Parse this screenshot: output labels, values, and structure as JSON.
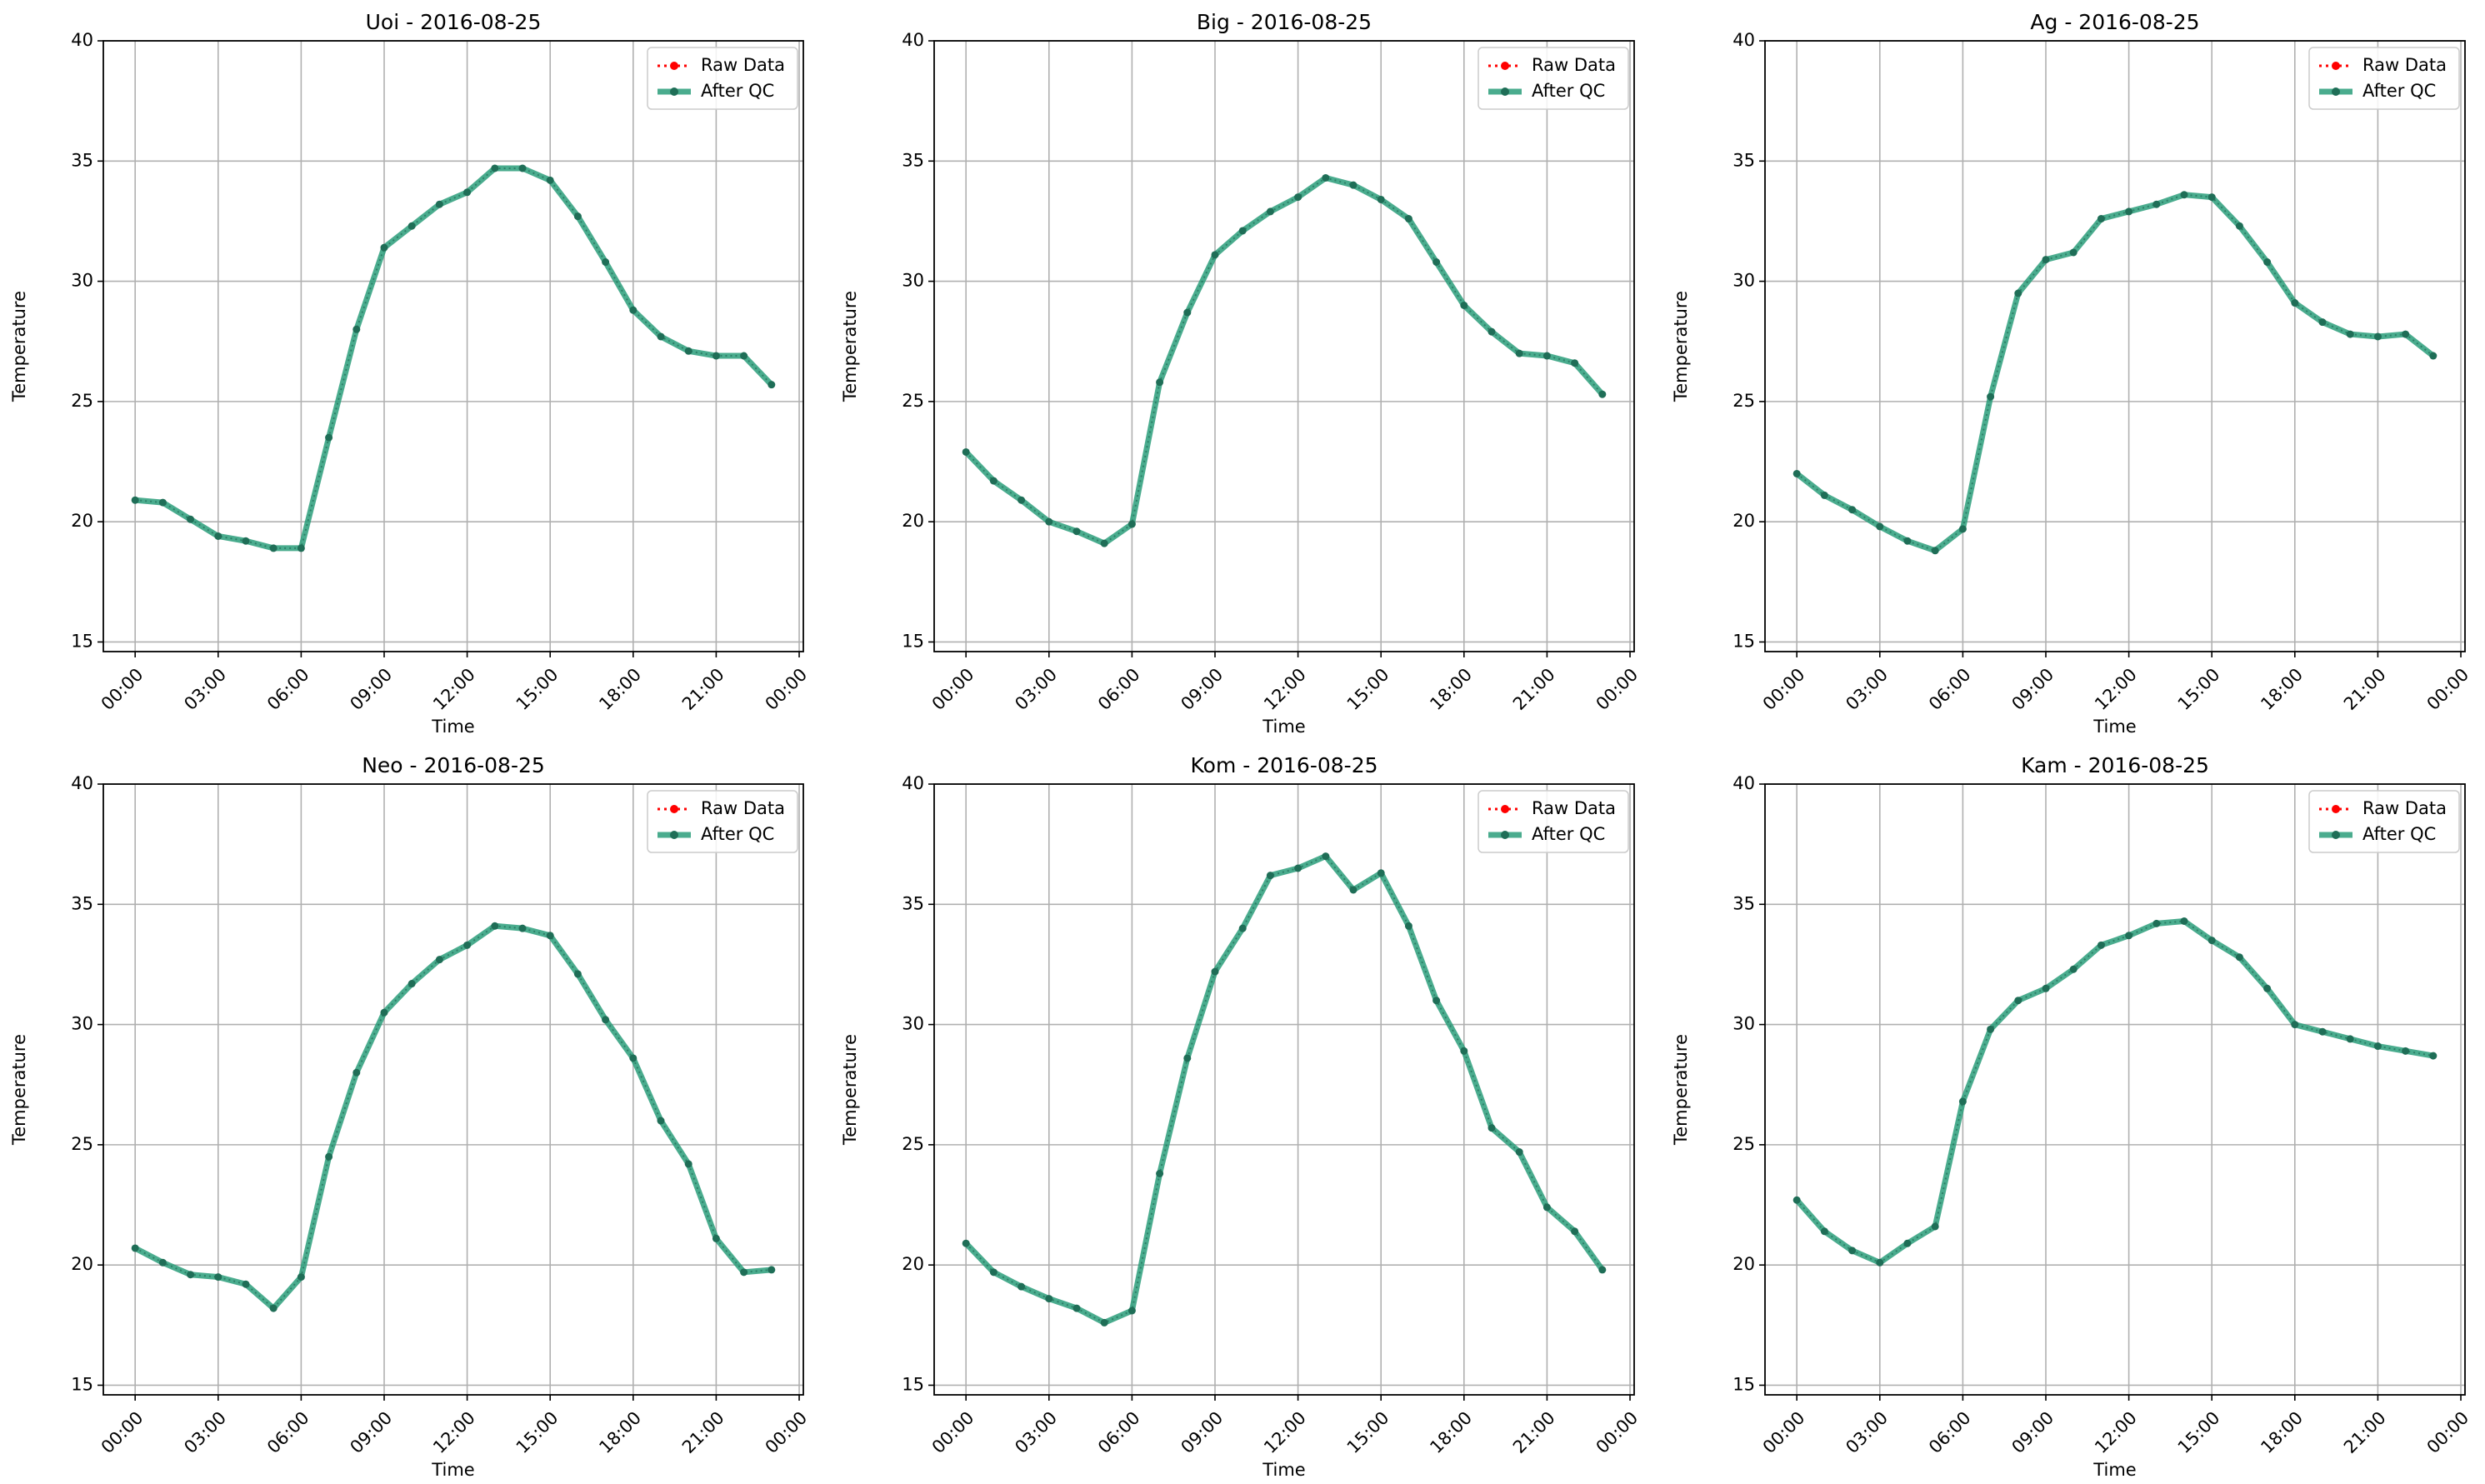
{
  "colors": {
    "raw": "#ff0000",
    "qc": "#2a9d7a",
    "qc_marker": "#1f6e57",
    "grid": "#b0b0b0",
    "axes": "#000000"
  },
  "chart_data": [
    {
      "type": "line",
      "title": "Uoi - 2016-08-25",
      "xlabel": "Time",
      "ylabel": "Temperature",
      "ylim": [
        14.6,
        40
      ],
      "xlim": [
        "2016-08-24 22:51",
        "2016-08-26 00:09"
      ],
      "yticks": [
        15,
        20,
        25,
        30,
        35,
        40
      ],
      "xticks": [
        "00:00",
        "03:00",
        "06:00",
        "09:00",
        "12:00",
        "15:00",
        "18:00",
        "21:00",
        "00:00"
      ],
      "grid": true,
      "legend": "top-right",
      "legend_labels": [
        "Raw Data",
        "After QC"
      ],
      "x": [
        "00:00",
        "01:00",
        "02:00",
        "03:00",
        "04:00",
        "05:00",
        "06:00",
        "07:00",
        "08:00",
        "09:00",
        "10:00",
        "11:00",
        "12:00",
        "13:00",
        "14:00",
        "15:00",
        "16:00",
        "17:00",
        "18:00",
        "19:00",
        "20:00",
        "21:00",
        "22:00",
        "23:00"
      ],
      "series": [
        {
          "name": "Raw Data",
          "style": "dotted",
          "values": [
            20.9,
            20.8,
            20.1,
            19.4,
            19.2,
            18.9,
            18.9,
            23.5,
            28.0,
            31.4,
            32.3,
            33.2,
            33.7,
            34.7,
            34.7,
            34.2,
            32.7,
            30.8,
            28.8,
            27.7,
            27.1,
            26.9,
            26.9,
            25.7
          ]
        },
        {
          "name": "After QC",
          "style": "solid",
          "values": [
            20.9,
            20.8,
            20.1,
            19.4,
            19.2,
            18.9,
            18.9,
            23.5,
            28.0,
            31.4,
            32.3,
            33.2,
            33.7,
            34.7,
            34.7,
            34.2,
            32.7,
            30.8,
            28.8,
            27.7,
            27.1,
            26.9,
            26.9,
            25.7
          ]
        }
      ]
    },
    {
      "type": "line",
      "title": "Big - 2016-08-25",
      "xlabel": "Time",
      "ylabel": "Temperature",
      "ylim": [
        14.6,
        40
      ],
      "xlim": [
        "2016-08-24 22:51",
        "2016-08-26 00:09"
      ],
      "yticks": [
        15,
        20,
        25,
        30,
        35,
        40
      ],
      "xticks": [
        "00:00",
        "03:00",
        "06:00",
        "09:00",
        "12:00",
        "15:00",
        "18:00",
        "21:00",
        "00:00"
      ],
      "grid": true,
      "legend": "top-right",
      "legend_labels": [
        "Raw Data",
        "After QC"
      ],
      "x": [
        "00:00",
        "01:00",
        "02:00",
        "03:00",
        "04:00",
        "05:00",
        "06:00",
        "07:00",
        "08:00",
        "09:00",
        "10:00",
        "11:00",
        "12:00",
        "13:00",
        "14:00",
        "15:00",
        "16:00",
        "17:00",
        "18:00",
        "19:00",
        "20:00",
        "21:00",
        "22:00",
        "23:00"
      ],
      "series": [
        {
          "name": "Raw Data",
          "style": "dotted",
          "values": [
            22.9,
            21.7,
            20.9,
            20.0,
            19.6,
            19.1,
            19.9,
            25.8,
            28.7,
            31.1,
            32.1,
            32.9,
            33.5,
            34.3,
            34.0,
            33.4,
            32.6,
            30.8,
            29.0,
            27.9,
            27.0,
            26.9,
            26.6,
            25.3
          ]
        },
        {
          "name": "After QC",
          "style": "solid",
          "values": [
            22.9,
            21.7,
            20.9,
            20.0,
            19.6,
            19.1,
            19.9,
            25.8,
            28.7,
            31.1,
            32.1,
            32.9,
            33.5,
            34.3,
            34.0,
            33.4,
            32.6,
            30.8,
            29.0,
            27.9,
            27.0,
            26.9,
            26.6,
            25.3
          ]
        }
      ]
    },
    {
      "type": "line",
      "title": "Ag - 2016-08-25",
      "xlabel": "Time",
      "ylabel": "Temperature",
      "ylim": [
        14.6,
        40
      ],
      "xlim": [
        "2016-08-24 22:51",
        "2016-08-26 00:09"
      ],
      "yticks": [
        15,
        20,
        25,
        30,
        35,
        40
      ],
      "xticks": [
        "00:00",
        "03:00",
        "06:00",
        "09:00",
        "12:00",
        "15:00",
        "18:00",
        "21:00",
        "00:00"
      ],
      "grid": true,
      "legend": "top-right",
      "legend_labels": [
        "Raw Data",
        "After QC"
      ],
      "x": [
        "00:00",
        "01:00",
        "02:00",
        "03:00",
        "04:00",
        "05:00",
        "06:00",
        "07:00",
        "08:00",
        "09:00",
        "10:00",
        "11:00",
        "12:00",
        "13:00",
        "14:00",
        "15:00",
        "16:00",
        "17:00",
        "18:00",
        "19:00",
        "20:00",
        "21:00",
        "22:00",
        "23:00"
      ],
      "series": [
        {
          "name": "Raw Data",
          "style": "dotted",
          "values": [
            22.0,
            21.1,
            20.5,
            19.8,
            19.2,
            18.8,
            19.7,
            25.2,
            29.5,
            30.9,
            31.2,
            32.6,
            32.9,
            33.2,
            33.6,
            33.5,
            32.3,
            30.8,
            29.1,
            28.3,
            27.8,
            27.7,
            27.8,
            26.9
          ]
        },
        {
          "name": "After QC",
          "style": "solid",
          "values": [
            22.0,
            21.1,
            20.5,
            19.8,
            19.2,
            18.8,
            19.7,
            25.2,
            29.5,
            30.9,
            31.2,
            32.6,
            32.9,
            33.2,
            33.6,
            33.5,
            32.3,
            30.8,
            29.1,
            28.3,
            27.8,
            27.7,
            27.8,
            26.9
          ]
        }
      ]
    },
    {
      "type": "line",
      "title": "Neo - 2016-08-25",
      "xlabel": "Time",
      "ylabel": "Temperature",
      "ylim": [
        14.6,
        40
      ],
      "xlim": [
        "2016-08-24 22:51",
        "2016-08-26 00:09"
      ],
      "yticks": [
        15,
        20,
        25,
        30,
        35,
        40
      ],
      "xticks": [
        "00:00",
        "03:00",
        "06:00",
        "09:00",
        "12:00",
        "15:00",
        "18:00",
        "21:00",
        "00:00"
      ],
      "grid": true,
      "legend": "top-right",
      "legend_labels": [
        "Raw Data",
        "After QC"
      ],
      "x": [
        "00:00",
        "01:00",
        "02:00",
        "03:00",
        "04:00",
        "05:00",
        "06:00",
        "07:00",
        "08:00",
        "09:00",
        "10:00",
        "11:00",
        "12:00",
        "13:00",
        "14:00",
        "15:00",
        "16:00",
        "17:00",
        "18:00",
        "19:00",
        "20:00",
        "21:00",
        "22:00",
        "23:00"
      ],
      "series": [
        {
          "name": "Raw Data",
          "style": "dotted",
          "values": [
            20.7,
            20.1,
            19.6,
            19.5,
            19.2,
            18.2,
            19.5,
            24.5,
            28.0,
            30.5,
            31.7,
            32.7,
            33.3,
            34.1,
            34.0,
            33.7,
            32.1,
            30.2,
            28.6,
            26.0,
            24.2,
            21.1,
            19.7,
            19.8
          ]
        },
        {
          "name": "After QC",
          "style": "solid",
          "values": [
            20.7,
            20.1,
            19.6,
            19.5,
            19.2,
            18.2,
            19.5,
            24.5,
            28.0,
            30.5,
            31.7,
            32.7,
            33.3,
            34.1,
            34.0,
            33.7,
            32.1,
            30.2,
            28.6,
            26.0,
            24.2,
            21.1,
            19.7,
            19.8
          ]
        }
      ]
    },
    {
      "type": "line",
      "title": "Kom - 2016-08-25",
      "xlabel": "Time",
      "ylabel": "Temperature",
      "ylim": [
        14.6,
        40
      ],
      "xlim": [
        "2016-08-24 22:51",
        "2016-08-26 00:09"
      ],
      "yticks": [
        15,
        20,
        25,
        30,
        35,
        40
      ],
      "xticks": [
        "00:00",
        "03:00",
        "06:00",
        "09:00",
        "12:00",
        "15:00",
        "18:00",
        "21:00",
        "00:00"
      ],
      "grid": true,
      "legend": "top-right",
      "legend_labels": [
        "Raw Data",
        "After QC"
      ],
      "x": [
        "00:00",
        "01:00",
        "02:00",
        "03:00",
        "04:00",
        "05:00",
        "06:00",
        "07:00",
        "08:00",
        "09:00",
        "10:00",
        "11:00",
        "12:00",
        "13:00",
        "14:00",
        "15:00",
        "16:00",
        "17:00",
        "18:00",
        "19:00",
        "20:00",
        "21:00",
        "22:00",
        "23:00"
      ],
      "series": [
        {
          "name": "Raw Data",
          "style": "dotted",
          "values": [
            20.9,
            19.7,
            19.1,
            18.6,
            18.2,
            17.6,
            18.1,
            23.8,
            28.6,
            32.2,
            34.0,
            36.2,
            36.5,
            37.0,
            35.6,
            36.3,
            34.1,
            31.0,
            28.9,
            25.7,
            24.7,
            22.4,
            21.4,
            19.8
          ]
        },
        {
          "name": "After QC",
          "style": "solid",
          "values": [
            20.9,
            19.7,
            19.1,
            18.6,
            18.2,
            17.6,
            18.1,
            23.8,
            28.6,
            32.2,
            34.0,
            36.2,
            36.5,
            37.0,
            35.6,
            36.3,
            34.1,
            31.0,
            28.9,
            25.7,
            24.7,
            22.4,
            21.4,
            19.8
          ]
        }
      ]
    },
    {
      "type": "line",
      "title": "Kam - 2016-08-25",
      "xlabel": "Time",
      "ylabel": "Temperature",
      "ylim": [
        14.6,
        40
      ],
      "xlim": [
        "2016-08-24 22:51",
        "2016-08-26 00:09"
      ],
      "yticks": [
        15,
        20,
        25,
        30,
        35,
        40
      ],
      "xticks": [
        "00:00",
        "03:00",
        "06:00",
        "09:00",
        "12:00",
        "15:00",
        "18:00",
        "21:00",
        "00:00"
      ],
      "grid": true,
      "legend": "top-right",
      "legend_labels": [
        "Raw Data",
        "After QC"
      ],
      "x": [
        "00:00",
        "01:00",
        "02:00",
        "03:00",
        "04:00",
        "05:00",
        "06:00",
        "07:00",
        "08:00",
        "09:00",
        "10:00",
        "11:00",
        "12:00",
        "13:00",
        "14:00",
        "15:00",
        "16:00",
        "17:00",
        "18:00",
        "19:00",
        "20:00",
        "21:00",
        "22:00",
        "23:00"
      ],
      "series": [
        {
          "name": "Raw Data",
          "style": "dotted",
          "values": [
            22.7,
            21.4,
            20.6,
            20.1,
            20.9,
            21.6,
            26.8,
            29.8,
            31.0,
            31.5,
            32.3,
            33.3,
            33.7,
            34.2,
            34.3,
            33.5,
            32.8,
            31.5,
            30.0,
            29.7,
            29.4,
            29.1,
            28.9,
            28.7
          ]
        },
        {
          "name": "After QC",
          "style": "solid",
          "values": [
            22.7,
            21.4,
            20.6,
            20.1,
            20.9,
            21.6,
            26.8,
            29.8,
            31.0,
            31.5,
            32.3,
            33.3,
            33.7,
            34.2,
            34.3,
            33.5,
            32.8,
            31.5,
            30.0,
            29.7,
            29.4,
            29.1,
            28.9,
            28.7
          ]
        }
      ]
    }
  ]
}
